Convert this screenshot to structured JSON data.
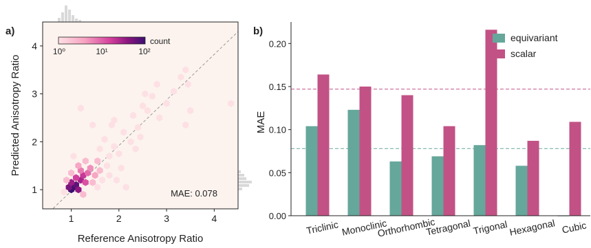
{
  "chart_data": [
    {
      "panel_label": "a)",
      "type": "scatter",
      "subtype": "hexbin",
      "title": "",
      "xlabel": "Reference Anisotropy Ratio",
      "ylabel": "Predicted Anisotropy Ratio",
      "xlim": [
        0.4,
        4.5
      ],
      "ylim": [
        0.6,
        4.5
      ],
      "xticks": [
        "1",
        "2",
        "3",
        "4"
      ],
      "yticks": [
        "1",
        "2",
        "3",
        "4"
      ],
      "annotation": "MAE: 0.078",
      "colorbar": {
        "label": "count",
        "scale": "log",
        "ticks": [
          "10⁰",
          "10¹",
          "10²"
        ],
        "colors": [
          "#fde0e4",
          "#f7a3c1",
          "#d33f9c",
          "#8a157f",
          "#3b0f70"
        ]
      },
      "background": "#fcf3ee",
      "reference_line": "y = x",
      "hexbins": [
        {
          "x": 1.0,
          "y": 1.0,
          "c": 120
        },
        {
          "x": 1.05,
          "y": 1.05,
          "c": 90
        },
        {
          "x": 1.1,
          "y": 1.1,
          "c": 60
        },
        {
          "x": 0.95,
          "y": 1.05,
          "c": 40
        },
        {
          "x": 1.15,
          "y": 1.0,
          "c": 30
        },
        {
          "x": 1.0,
          "y": 1.15,
          "c": 25
        },
        {
          "x": 1.2,
          "y": 1.2,
          "c": 20
        },
        {
          "x": 1.25,
          "y": 1.3,
          "c": 12
        },
        {
          "x": 1.1,
          "y": 1.25,
          "c": 10
        },
        {
          "x": 1.3,
          "y": 1.15,
          "c": 8
        },
        {
          "x": 1.35,
          "y": 1.35,
          "c": 6
        },
        {
          "x": 1.2,
          "y": 1.4,
          "c": 5
        },
        {
          "x": 1.4,
          "y": 1.45,
          "c": 4
        },
        {
          "x": 1.5,
          "y": 1.3,
          "c": 3
        },
        {
          "x": 1.15,
          "y": 1.5,
          "c": 3
        },
        {
          "x": 1.55,
          "y": 1.6,
          "c": 2
        },
        {
          "x": 1.6,
          "y": 1.4,
          "c": 2
        },
        {
          "x": 1.3,
          "y": 1.6,
          "c": 2
        },
        {
          "x": 0.9,
          "y": 1.2,
          "c": 2
        },
        {
          "x": 1.25,
          "y": 0.9,
          "c": 2
        },
        {
          "x": 1.0,
          "y": 1.35,
          "c": 2
        },
        {
          "x": 1.45,
          "y": 1.15,
          "c": 2
        },
        {
          "x": 1.8,
          "y": 1.7,
          "c": 1
        },
        {
          "x": 1.75,
          "y": 1.5,
          "c": 1
        },
        {
          "x": 1.9,
          "y": 1.9,
          "c": 1
        },
        {
          "x": 2.0,
          "y": 1.75,
          "c": 1
        },
        {
          "x": 1.6,
          "y": 1.85,
          "c": 1
        },
        {
          "x": 1.7,
          "y": 2.05,
          "c": 1
        },
        {
          "x": 2.1,
          "y": 2.2,
          "c": 1
        },
        {
          "x": 1.85,
          "y": 2.35,
          "c": 1
        },
        {
          "x": 2.25,
          "y": 2.0,
          "c": 1
        },
        {
          "x": 2.4,
          "y": 2.3,
          "c": 1
        },
        {
          "x": 2.3,
          "y": 2.55,
          "c": 1
        },
        {
          "x": 2.5,
          "y": 2.75,
          "c": 1
        },
        {
          "x": 2.6,
          "y": 2.65,
          "c": 1
        },
        {
          "x": 2.7,
          "y": 2.95,
          "c": 1
        },
        {
          "x": 2.55,
          "y": 3.0,
          "c": 1
        },
        {
          "x": 2.85,
          "y": 2.5,
          "c": 1
        },
        {
          "x": 3.0,
          "y": 2.8,
          "c": 1
        },
        {
          "x": 3.15,
          "y": 3.05,
          "c": 1
        },
        {
          "x": 3.3,
          "y": 3.35,
          "c": 1
        },
        {
          "x": 3.4,
          "y": 3.5,
          "c": 1
        },
        {
          "x": 3.45,
          "y": 3.2,
          "c": 1
        },
        {
          "x": 3.5,
          "y": 2.65,
          "c": 1
        },
        {
          "x": 3.4,
          "y": 2.35,
          "c": 1
        },
        {
          "x": 4.35,
          "y": 2.8,
          "c": 1
        },
        {
          "x": 1.2,
          "y": 2.7,
          "c": 1
        },
        {
          "x": 1.45,
          "y": 2.35,
          "c": 1
        },
        {
          "x": 1.9,
          "y": 2.45,
          "c": 1
        },
        {
          "x": 2.15,
          "y": 1.05,
          "c": 1
        },
        {
          "x": 1.95,
          "y": 1.2,
          "c": 1
        },
        {
          "x": 1.55,
          "y": 1.05,
          "c": 1
        },
        {
          "x": 0.85,
          "y": 0.95,
          "c": 1
        },
        {
          "x": 1.65,
          "y": 1.2,
          "c": 1
        },
        {
          "x": 2.05,
          "y": 1.45,
          "c": 1
        },
        {
          "x": 1.05,
          "y": 1.7,
          "c": 1
        },
        {
          "x": 2.35,
          "y": 1.85,
          "c": 1
        },
        {
          "x": 2.8,
          "y": 3.2,
          "c": 1
        },
        {
          "x": 2.45,
          "y": 2.1,
          "c": 1
        },
        {
          "x": 1.8,
          "y": 1.3,
          "c": 1
        }
      ]
    },
    {
      "panel_label": "b)",
      "type": "bar",
      "title": "",
      "xlabel": "",
      "ylabel": "MAE",
      "categories": [
        "Triclinic",
        "Monoclinic",
        "Orthorhombic",
        "Tetragonal",
        "Trigonal",
        "Hexagonal",
        "Cubic"
      ],
      "series": [
        {
          "name": "equivariant",
          "color": "#66a79b",
          "values": [
            0.104,
            0.123,
            0.063,
            0.069,
            0.082,
            0.058,
            0.0
          ]
        },
        {
          "name": "scalar",
          "color": "#c25285",
          "values": [
            0.164,
            0.15,
            0.14,
            0.104,
            0.216,
            0.087,
            0.109
          ]
        }
      ],
      "reference_lines": [
        {
          "value": 0.147,
          "color": "#c25285"
        },
        {
          "value": 0.078,
          "color": "#66a79b"
        }
      ],
      "ylim": [
        0,
        0.225
      ],
      "yticks": [
        "0.00",
        "0.05",
        "0.10",
        "0.15",
        "0.20"
      ],
      "legend_position": "top-right"
    }
  ]
}
